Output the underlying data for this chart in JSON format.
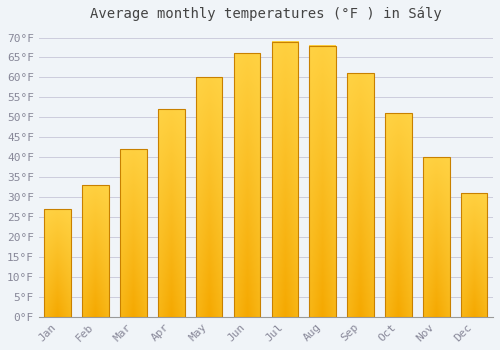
{
  "title": "Average monthly temperatures (°F ) in Sály",
  "months": [
    "Jan",
    "Feb",
    "Mar",
    "Apr",
    "May",
    "Jun",
    "Jul",
    "Aug",
    "Sep",
    "Oct",
    "Nov",
    "Dec"
  ],
  "values": [
    27,
    33,
    42,
    52,
    60,
    66,
    69,
    68,
    61,
    51,
    40,
    31
  ],
  "bar_color_bottom": "#F5A800",
  "bar_color_top": "#FFD040",
  "bar_edge_color": "#C88000",
  "background_color": "#F0F4F8",
  "plot_bg_color": "#F0F4F8",
  "grid_color": "#CCCCDD",
  "text_color": "#888899",
  "title_color": "#444444",
  "ylim": [
    0,
    72
  ],
  "yticks": [
    0,
    5,
    10,
    15,
    20,
    25,
    30,
    35,
    40,
    45,
    50,
    55,
    60,
    65,
    70
  ],
  "title_fontsize": 10,
  "tick_fontsize": 8
}
